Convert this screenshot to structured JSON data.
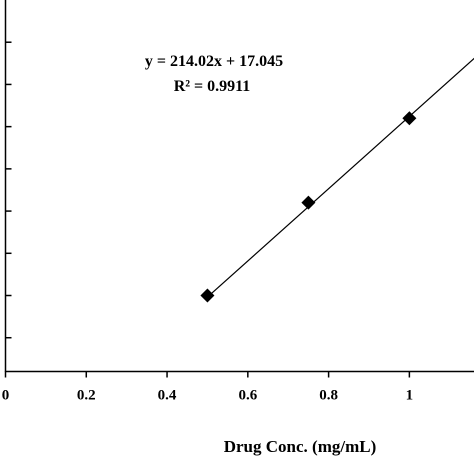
{
  "chart_data": {
    "type": "scatter",
    "xlabel": "Drug Conc. (mg/mL)",
    "ylabel": "",
    "xlim": [
      0,
      1.16
    ],
    "ylim": [
      80,
      300
    ],
    "xticks": [
      0,
      0.2,
      0.4,
      0.6,
      0.8,
      1
    ],
    "xtick_labels": [
      "0",
      "0.2",
      "0.4",
      "0.6",
      "0.8",
      "1"
    ],
    "yticks": [
      100,
      125,
      150,
      175,
      200,
      225,
      250,
      275
    ],
    "grid": false,
    "series": [
      {
        "marker": "diamond",
        "x": [
          0.5,
          0.75,
          1.0
        ],
        "y": [
          125,
          180,
          230
        ]
      }
    ],
    "trendline": {
      "slope": 214.02,
      "intercept": 17.045,
      "x_range": [
        0.5,
        1.2
      ]
    },
    "annotations": {
      "equation": "y = 214.02x + 17.045",
      "r_squared": "R² = 0.9911"
    }
  }
}
